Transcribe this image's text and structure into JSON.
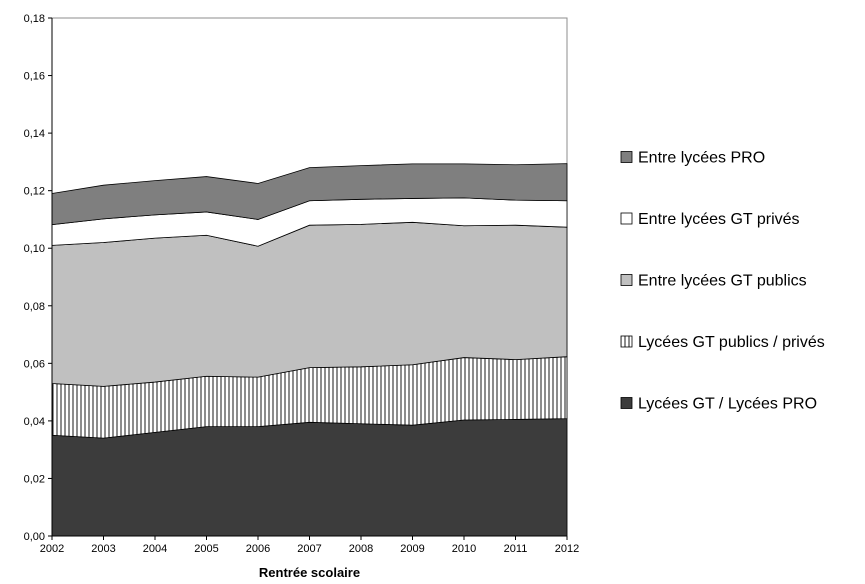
{
  "chart_data": {
    "type": "area",
    "stacked": true,
    "xlabel": "Rentrée scolaire",
    "ylabel": "",
    "title": "",
    "ylim": [
      0,
      0.18
    ],
    "ytick_step": 0.02,
    "y_tick_labels": [
      "0,00",
      "0,02",
      "0,04",
      "0,06",
      "0,08",
      "0,10",
      "0,12",
      "0,14",
      "0,16",
      "0,18"
    ],
    "x": [
      "2002",
      "2003",
      "2004",
      "2005",
      "2006",
      "2007",
      "2008",
      "2009",
      "2010",
      "2011",
      "2012"
    ],
    "grid": false,
    "legend_position": "right",
    "series": [
      {
        "name": "Lycées GT / Lycées PRO",
        "fill": "#3c3c3c",
        "pattern": "solid",
        "values": [
          0.035,
          0.034,
          0.036,
          0.038,
          0.038,
          0.0395,
          0.039,
          0.0385,
          0.0403,
          0.0405,
          0.0408
        ]
      },
      {
        "name": "Lycées GT publics / privés",
        "fill": "#ffffff",
        "pattern": "vertical-lines",
        "values": [
          0.018,
          0.018,
          0.0175,
          0.0175,
          0.0172,
          0.019,
          0.0198,
          0.021,
          0.0217,
          0.0208,
          0.0215
        ]
      },
      {
        "name": "Entre lycées GT publics",
        "fill": "#c0c0c0",
        "pattern": "solid",
        "values": [
          0.048,
          0.05,
          0.05,
          0.049,
          0.0455,
          0.0495,
          0.0495,
          0.0495,
          0.0458,
          0.0467,
          0.045
        ]
      },
      {
        "name": "Entre lycées GT privés",
        "fill": "#ffffff",
        "pattern": "solid",
        "values": [
          0.0072,
          0.0082,
          0.0081,
          0.0081,
          0.0093,
          0.0085,
          0.0087,
          0.0083,
          0.0097,
          0.0087,
          0.0092
        ]
      },
      {
        "name": "Entre lycées PRO",
        "fill": "#7f7f7f",
        "pattern": "solid",
        "values": [
          0.0108,
          0.0117,
          0.0119,
          0.0123,
          0.0125,
          0.0115,
          0.0117,
          0.012,
          0.0118,
          0.0123,
          0.0129
        ]
      }
    ]
  }
}
